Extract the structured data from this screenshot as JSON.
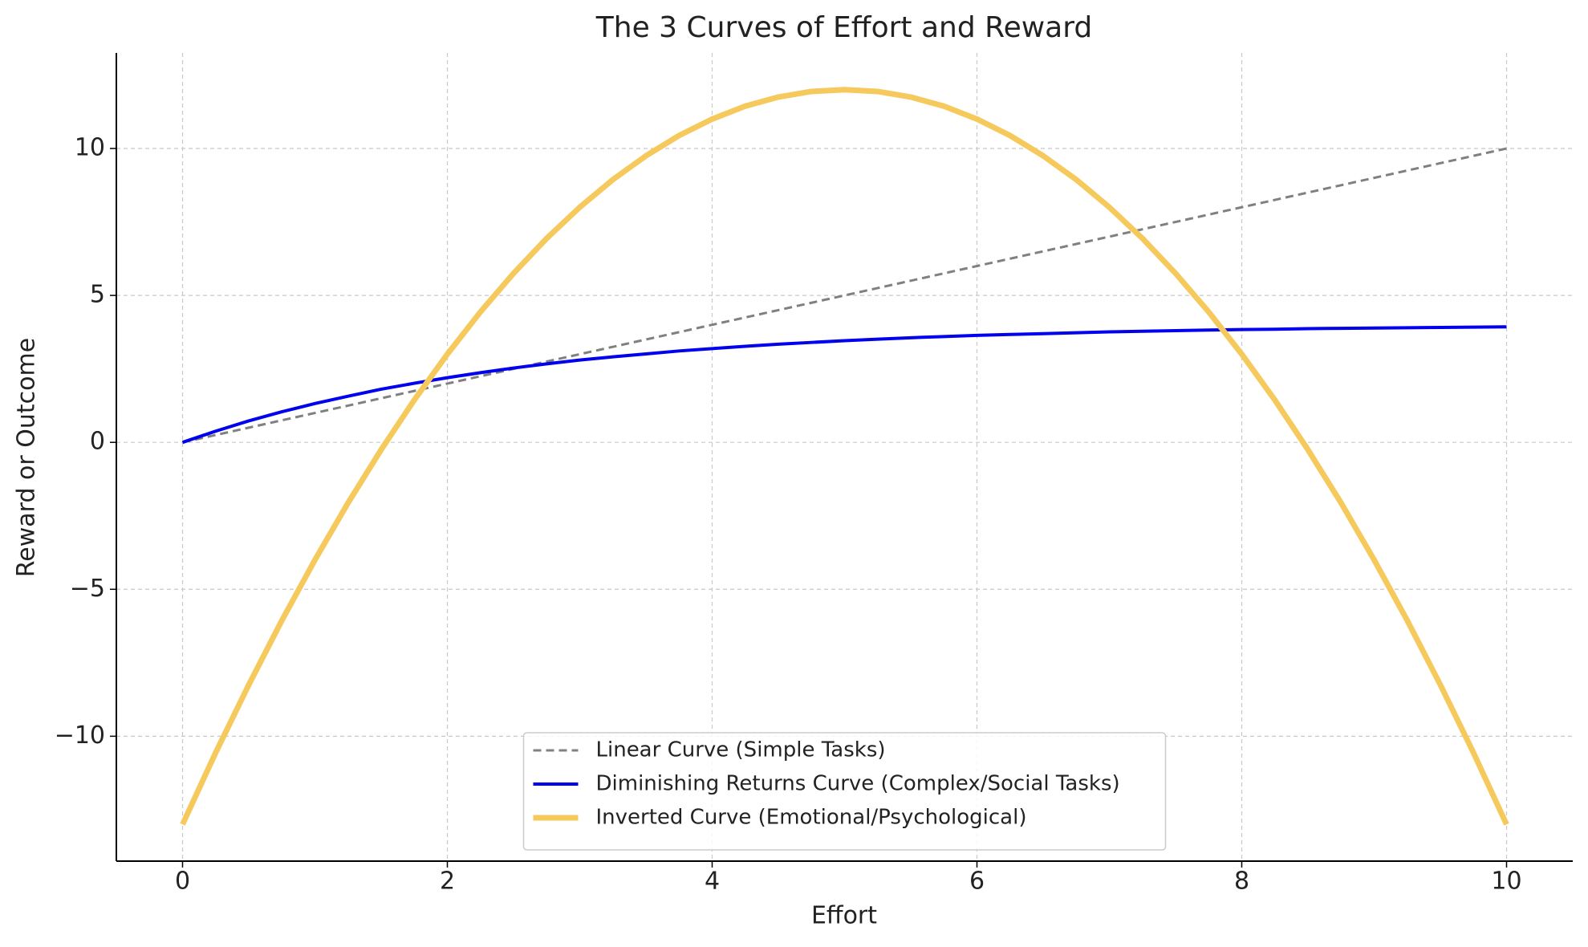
{
  "chart_data": {
    "type": "line",
    "title": "The 3 Curves of Effort and Reward",
    "x_label": "Effort",
    "y_label": "Reward or Outcome",
    "x": [
      0,
      0.25,
      0.5,
      0.75,
      1,
      1.25,
      1.5,
      1.75,
      2,
      2.25,
      2.5,
      2.75,
      3,
      3.25,
      3.5,
      3.75,
      4,
      4.25,
      4.5,
      4.75,
      5,
      5.25,
      5.5,
      5.75,
      6,
      6.25,
      6.5,
      6.75,
      7,
      7.25,
      7.5,
      7.75,
      8,
      8.25,
      8.5,
      8.75,
      9,
      9.25,
      9.5,
      9.75,
      10
    ],
    "series": [
      {
        "name": "Linear Curve (Simple Tasks)",
        "color": "#808080",
        "dash": true,
        "width": 3,
        "values": [
          0,
          0.25,
          0.5,
          0.75,
          1,
          1.25,
          1.5,
          1.75,
          2,
          2.25,
          2.5,
          2.75,
          3,
          3.25,
          3.5,
          3.75,
          4,
          4.25,
          4.5,
          4.75,
          5,
          5.25,
          5.5,
          5.75,
          6,
          6.25,
          6.5,
          6.75,
          7,
          7.25,
          7.5,
          7.75,
          8,
          8.25,
          8.5,
          8.75,
          9,
          9.25,
          9.5,
          9.75,
          10
        ]
      },
      {
        "name": "Diminishing Returns Curve (Complex/Social Tasks)",
        "color": "#0000ee",
        "dash": false,
        "width": 4,
        "values": [
          0,
          0.38,
          0.73,
          1.04,
          1.32,
          1.57,
          1.81,
          2.01,
          2.2,
          2.37,
          2.53,
          2.67,
          2.8,
          2.91,
          3.01,
          3.11,
          3.19,
          3.27,
          3.34,
          3.4,
          3.46,
          3.51,
          3.56,
          3.6,
          3.64,
          3.67,
          3.7,
          3.73,
          3.76,
          3.78,
          3.8,
          3.82,
          3.84,
          3.85,
          3.87,
          3.88,
          3.89,
          3.9,
          3.91,
          3.92,
          3.93
        ]
      },
      {
        "name": "Inverted Curve (Emotional/Psychological)",
        "color": "#f5c95c",
        "dash": false,
        "width": 7,
        "values": [
          -13,
          -10.56,
          -8.25,
          -6.06,
          -4,
          -2.06,
          -0.25,
          1.44,
          3,
          4.44,
          5.75,
          6.94,
          8,
          8.94,
          9.75,
          10.44,
          11,
          11.44,
          11.75,
          11.94,
          12,
          11.94,
          11.75,
          11.44,
          11,
          10.44,
          9.75,
          8.94,
          8,
          6.94,
          5.75,
          4.44,
          3,
          1.44,
          -0.25,
          -2.06,
          -4,
          -6.06,
          -8.25,
          -10.56,
          -13
        ]
      }
    ],
    "xlim": [
      -0.5,
      10.5
    ],
    "xticks": [
      0,
      2,
      4,
      6,
      8,
      10
    ],
    "ylim": [
      -14.25,
      13.25
    ],
    "yticks": [
      {
        "value": -10,
        "label": "−10"
      },
      {
        "value": -5,
        "label": "−5"
      },
      0,
      5,
      10
    ],
    "grid": true,
    "legend": "lower center"
  }
}
